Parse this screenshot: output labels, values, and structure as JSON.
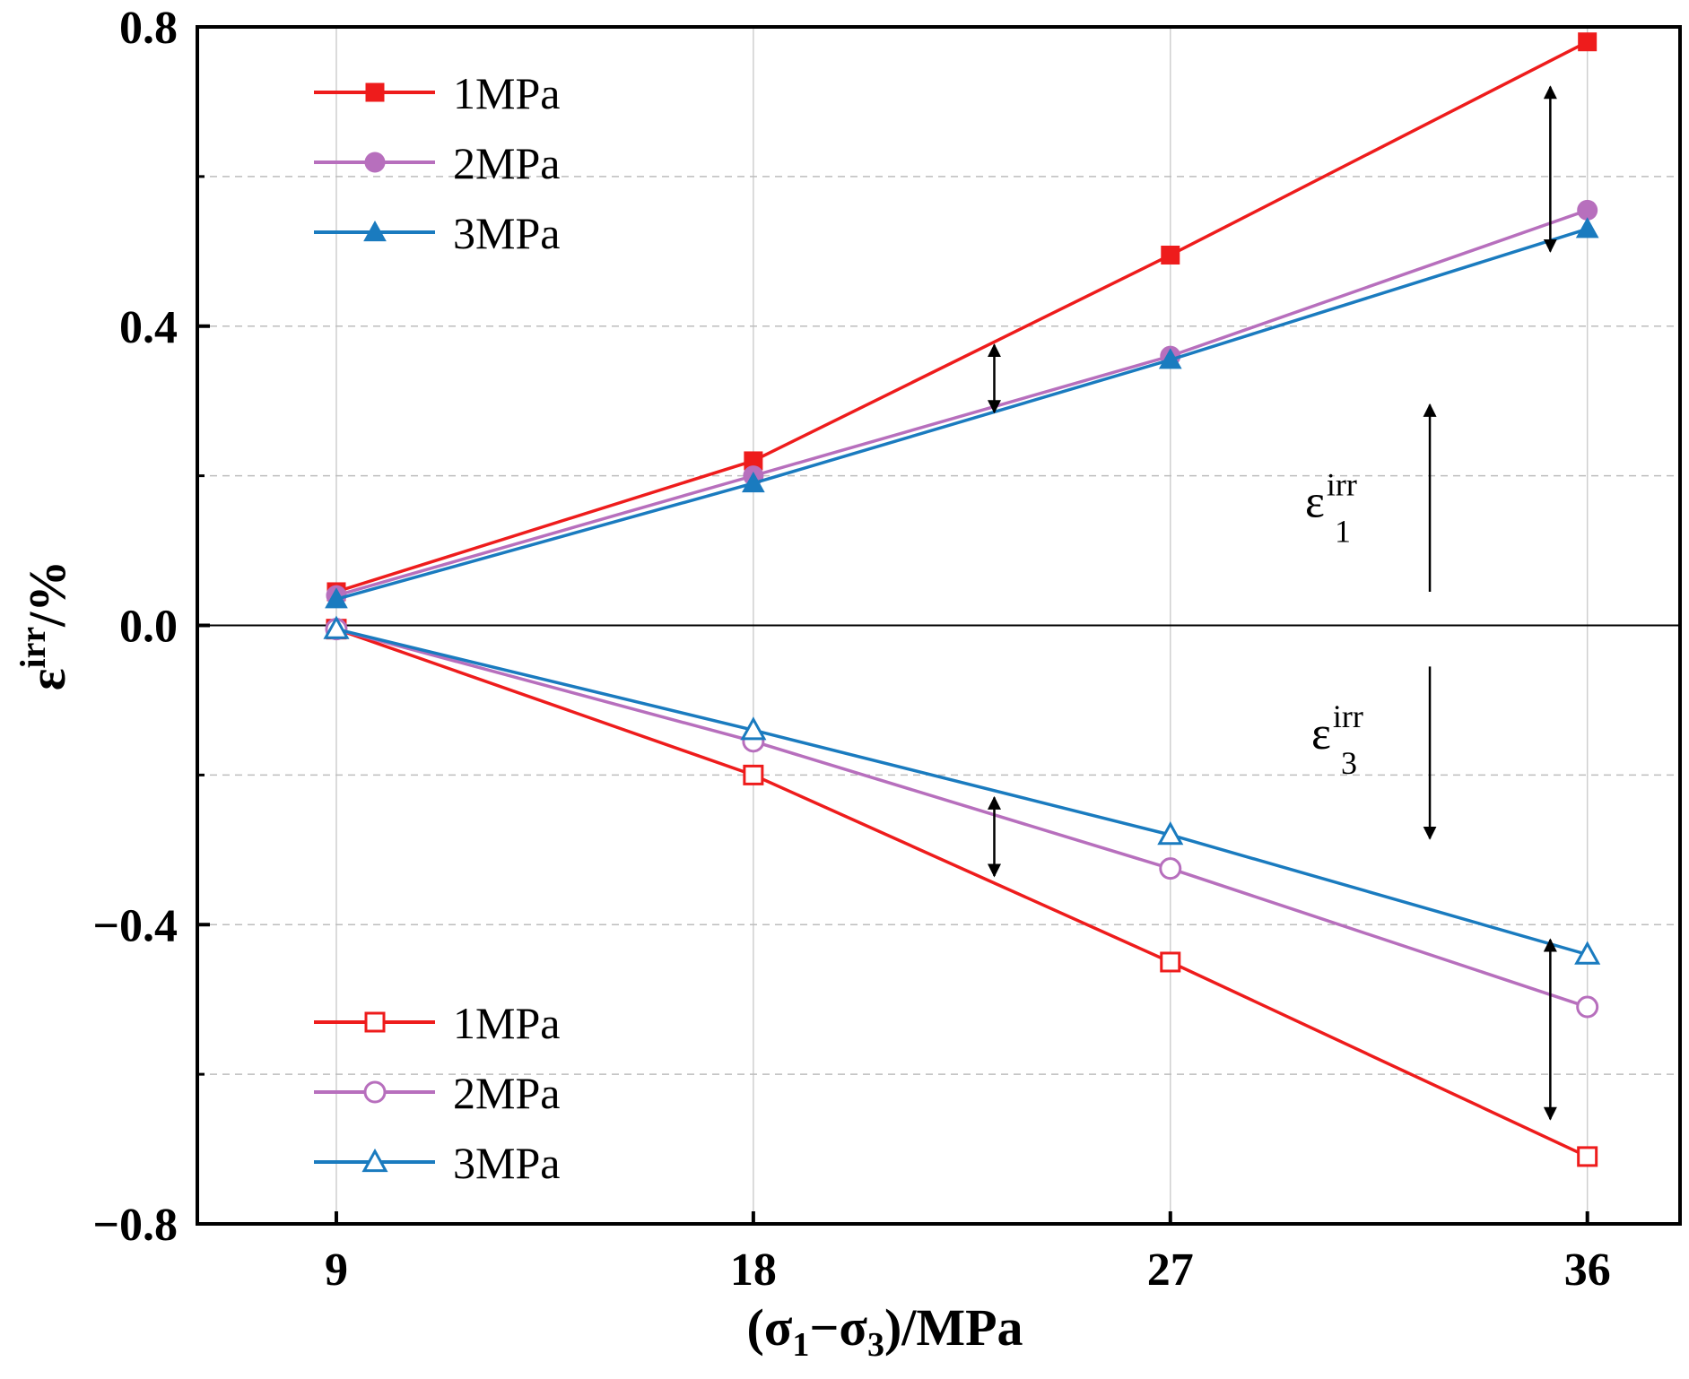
{
  "chart_data": {
    "type": "line",
    "xlabel": "(σ1−σ3)/MPa",
    "xlabel_parts": {
      "open": "(σ",
      "sub1": "1",
      "mid": "−σ",
      "sub2": "3",
      "close": ")/MPa"
    },
    "ylabel": "εirr/%",
    "ylabel_parts": {
      "base": "ε",
      "sup": "irr",
      "tail": "/%"
    },
    "x": [
      9,
      18,
      27,
      36
    ],
    "x_ticks": [
      "9",
      "18",
      "27",
      "36"
    ],
    "y_ticks": [
      "0.8",
      "0.4",
      "0.0",
      "−0.4",
      "−0.8"
    ],
    "y_tick_values": [
      0.8,
      0.4,
      0.0,
      -0.4,
      -0.8
    ],
    "ylim": [
      -0.8,
      0.8
    ],
    "xlim": [
      6,
      38
    ],
    "grid": true,
    "series": [
      {
        "name": "1MPa",
        "group": "epsilon1",
        "color": "#ee1c1c",
        "marker": "square",
        "filled": true,
        "values": [
          0.045,
          0.22,
          0.495,
          0.78
        ]
      },
      {
        "name": "2MPa",
        "group": "epsilon1",
        "color": "#b76fbd",
        "marker": "circle",
        "filled": true,
        "values": [
          0.04,
          0.2,
          0.36,
          0.555
        ]
      },
      {
        "name": "3MPa",
        "group": "epsilon1",
        "color": "#1a7bbf",
        "marker": "triangle",
        "filled": true,
        "values": [
          0.035,
          0.19,
          0.355,
          0.53
        ]
      },
      {
        "name": "1MPa",
        "group": "epsilon3",
        "color": "#ee1c1c",
        "marker": "square",
        "filled": false,
        "values": [
          -0.005,
          -0.2,
          -0.45,
          -0.71
        ]
      },
      {
        "name": "2MPa",
        "group": "epsilon3",
        "color": "#b76fbd",
        "marker": "circle",
        "filled": false,
        "values": [
          -0.005,
          -0.155,
          -0.325,
          -0.51
        ]
      },
      {
        "name": "3MPa",
        "group": "epsilon3",
        "color": "#1a7bbf",
        "marker": "triangle",
        "filled": false,
        "values": [
          -0.005,
          -0.14,
          -0.28,
          -0.44
        ]
      }
    ],
    "legend_top": {
      "placement": "top-left",
      "entries": [
        "1MPa",
        "2MPa",
        "3MPa"
      ]
    },
    "legend_bottom": {
      "placement": "bottom-left",
      "entries": [
        "1MPa",
        "2MPa",
        "3MPa"
      ]
    },
    "annotations": [
      {
        "base": "ε",
        "sup": "irr",
        "sub": "1"
      },
      {
        "base": "ε",
        "sup": "irr",
        "sub": "3"
      }
    ]
  }
}
